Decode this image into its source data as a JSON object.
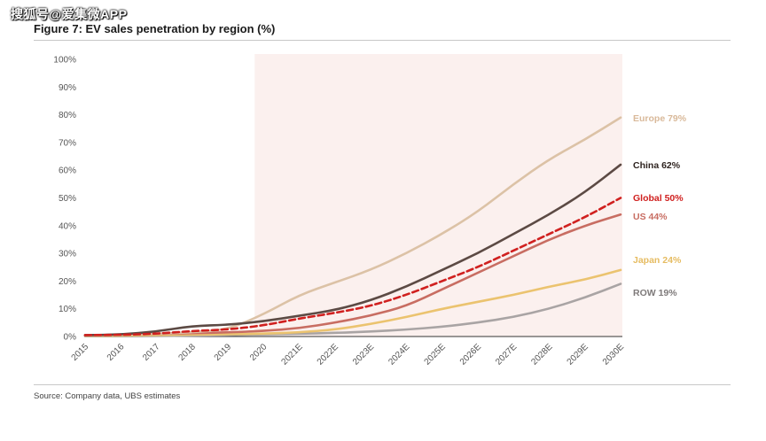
{
  "watermark": "搜狐号@爱集微APP",
  "figure_title": "Figure 7: EV sales penetration by region (%)",
  "source": "Source:  Company data, UBS estimates",
  "chart_data": {
    "type": "line",
    "title": "Figure 7: EV sales penetration by region (%)",
    "xlabel": "",
    "ylabel": "",
    "ylim": [
      0,
      100
    ],
    "yticks": [
      "0%",
      "10%",
      "20%",
      "30%",
      "40%",
      "50%",
      "60%",
      "70%",
      "80%",
      "90%",
      "100%"
    ],
    "categories": [
      "2015",
      "2016",
      "2017",
      "2018",
      "2019",
      "2020",
      "2021E",
      "2022E",
      "2023E",
      "2024E",
      "2025E",
      "2026E",
      "2027E",
      "2028E",
      "2029E",
      "2030E"
    ],
    "forecast_shading_start": "2019.75",
    "series": [
      {
        "name": "Europe",
        "label": "Europe 79%",
        "color": "#dcc2a6",
        "dashed": false,
        "values": [
          0.5,
          0.6,
          1,
          1.5,
          2.5,
          8,
          15,
          19.5,
          24,
          30,
          37,
          45,
          55,
          64,
          71,
          79
        ]
      },
      {
        "name": "China",
        "label": "China 62%",
        "color": "#5c4a44",
        "dashed": false,
        "values": [
          0.5,
          0.7,
          1.8,
          3.8,
          4.2,
          5.5,
          7.5,
          9.5,
          13,
          18,
          24,
          30,
          37,
          44,
          52,
          62
        ]
      },
      {
        "name": "Global",
        "label": "Global 50%",
        "color": "#d0201f",
        "dashed": true,
        "values": [
          0.5,
          0.6,
          1,
          2,
          2.5,
          4,
          6.5,
          8.5,
          11,
          15,
          20,
          25,
          31,
          37,
          43,
          50
        ]
      },
      {
        "name": "US",
        "label": "US 44%",
        "color": "#c86d62",
        "dashed": false,
        "values": [
          0.5,
          0.6,
          1,
          1.2,
          1.5,
          2,
          3,
          5,
          7.5,
          11,
          17,
          23,
          29,
          35,
          40,
          44
        ]
      },
      {
        "name": "Japan",
        "label": "Japan 24%",
        "color": "#ebc36f",
        "dashed": false,
        "values": [
          0.3,
          0.3,
          0.5,
          0.7,
          0.8,
          1,
          1.5,
          2.5,
          4.5,
          7,
          10,
          12.5,
          15,
          18,
          20.5,
          24
        ]
      },
      {
        "name": "ROW",
        "label": "ROW 19%",
        "color": "#a9a4a4",
        "dashed": false,
        "values": [
          0.1,
          0.1,
          0.2,
          0.3,
          0.5,
          0.8,
          1,
          1.3,
          1.8,
          2.5,
          3.5,
          5,
          7,
          10,
          14,
          19
        ]
      }
    ]
  }
}
